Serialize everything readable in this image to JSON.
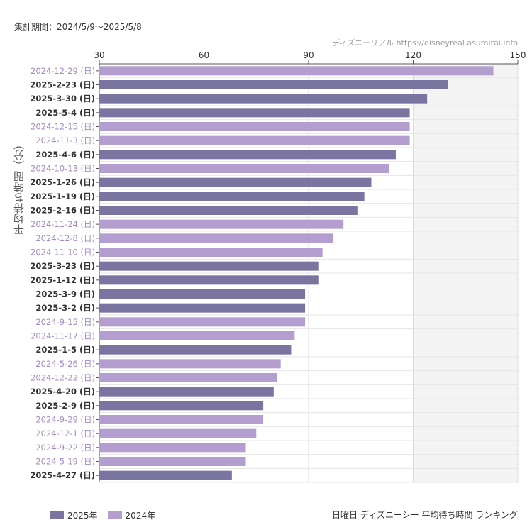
{
  "header": {
    "period": "集計期間：2024/5/9～2025/5/8",
    "credit": "ディズニーリアル https://disneyreal.asumirai.info"
  },
  "footer": {
    "title": "日曜日 ディズニーシー 平均待ち時間 ランキング"
  },
  "colors": {
    "y2025": "#7a74a0",
    "y2024": "#b49ed0",
    "label2025": "#333333",
    "label2024": "#a58ac8"
  },
  "chart_data": {
    "type": "bar",
    "orientation": "horizontal",
    "ylabel": "平均待ち時間（分）",
    "xlim": [
      30,
      150
    ],
    "xticks": [
      "30",
      "60",
      "90",
      "120",
      "150"
    ],
    "grid": true,
    "legend_position": "bottom-left",
    "legend": [
      {
        "name": "2025年",
        "color_key": "y2025"
      },
      {
        "name": "2024年",
        "color_key": "y2024"
      }
    ],
    "categories": [
      "2024-12-29 (日)",
      "2025-2-23 (日)",
      "2025-3-30 (日)",
      "2025-5-4 (日)",
      "2024-12-15 (日)",
      "2024-11-3 (日)",
      "2025-4-6 (日)",
      "2024-10-13 (日)",
      "2025-1-26 (日)",
      "2025-1-19 (日)",
      "2025-2-16 (日)",
      "2024-11-24 (日)",
      "2024-12-8 (日)",
      "2024-11-10 (日)",
      "2025-3-23 (日)",
      "2025-1-12 (日)",
      "2025-3-9 (日)",
      "2025-3-2 (日)",
      "2024-9-15 (日)",
      "2024-11-17 (日)",
      "2025-1-5 (日)",
      "2024-5-26 (日)",
      "2024-12-22 (日)",
      "2025-4-20 (日)",
      "2025-2-9 (日)",
      "2024-9-29 (日)",
      "2024-12-1 (日)",
      "2024-9-22 (日)",
      "2024-5-19 (日)",
      "2025-4-27 (日)"
    ],
    "values": [
      143,
      130,
      124,
      119,
      119,
      119,
      115,
      113,
      108,
      106,
      104,
      100,
      97,
      94,
      93,
      93,
      89,
      89,
      89,
      86,
      85,
      82,
      81,
      80,
      77,
      77,
      75,
      72,
      72,
      68
    ],
    "year": [
      "2024",
      "2025",
      "2025",
      "2025",
      "2024",
      "2024",
      "2025",
      "2024",
      "2025",
      "2025",
      "2025",
      "2024",
      "2024",
      "2024",
      "2025",
      "2025",
      "2025",
      "2025",
      "2024",
      "2024",
      "2025",
      "2024",
      "2024",
      "2025",
      "2025",
      "2024",
      "2024",
      "2024",
      "2024",
      "2025"
    ]
  }
}
